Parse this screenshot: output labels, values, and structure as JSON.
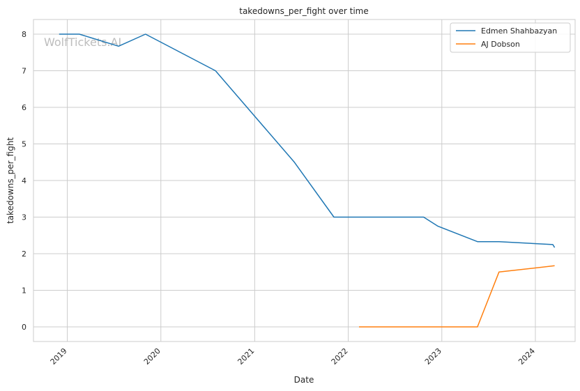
{
  "chart_data": {
    "type": "line",
    "title": "takedowns_per_fight over time",
    "xlabel": "Date",
    "ylabel": "takedowns_per_fight",
    "watermark": "WolfTickets.AI",
    "x_ticks": [
      "2019",
      "2020",
      "2021",
      "2022",
      "2023",
      "2024"
    ],
    "y_ticks": [
      "0",
      "1",
      "2",
      "3",
      "4",
      "5",
      "6",
      "7",
      "8"
    ],
    "ylim": [
      -0.4,
      8.4
    ],
    "xlim": [
      "2018-08-22",
      "2024-06-04"
    ],
    "grid": true,
    "legend_position": "top-right",
    "series": [
      {
        "name": "Edmen Shahbazyan",
        "color": "#1f77b4",
        "points": [
          {
            "x": "2018-11-30",
            "y": 8.0
          },
          {
            "x": "2019-02-17",
            "y": 8.0
          },
          {
            "x": "2019-07-20",
            "y": 7.67
          },
          {
            "x": "2019-11-02",
            "y": 8.0
          },
          {
            "x": "2020-08-01",
            "y": 7.0
          },
          {
            "x": "2021-06-05",
            "y": 4.5
          },
          {
            "x": "2021-11-06",
            "y": 3.0
          },
          {
            "x": "2022-10-22",
            "y": 3.0
          },
          {
            "x": "2022-12-17",
            "y": 2.75
          },
          {
            "x": "2023-05-20",
            "y": 2.33
          },
          {
            "x": "2023-08-12",
            "y": 2.33
          },
          {
            "x": "2024-03-09",
            "y": 2.25
          },
          {
            "x": "2024-03-16",
            "y": 2.17
          }
        ]
      },
      {
        "name": "AJ Dobson",
        "color": "#ff7f0e",
        "points": [
          {
            "x": "2022-02-12",
            "y": 0.0
          },
          {
            "x": "2023-05-20",
            "y": 0.0
          },
          {
            "x": "2023-08-12",
            "y": 1.5
          },
          {
            "x": "2024-03-16",
            "y": 1.67
          }
        ]
      }
    ]
  }
}
